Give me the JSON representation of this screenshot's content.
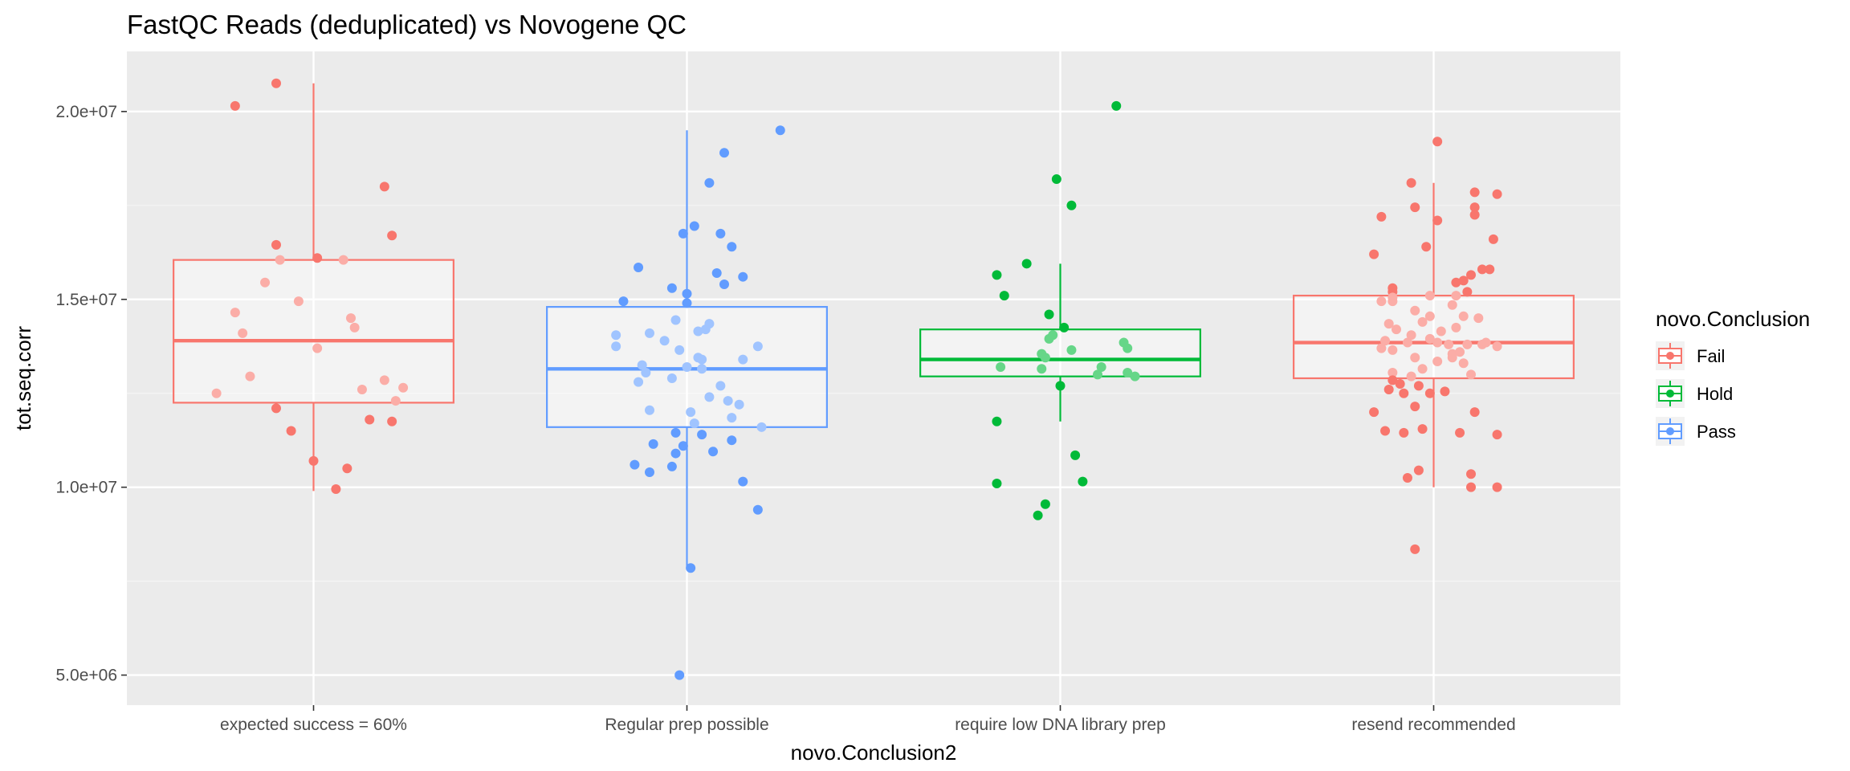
{
  "chart_data": {
    "type": "boxplot",
    "title": "FastQC Reads (deduplicated) vs Novogene QC",
    "xlabel": "novo.Conclusion2",
    "ylabel": "tot.seq.corr",
    "ylim": [
      4200000,
      21600000
    ],
    "y_ticks": [
      5000000,
      10000000,
      15000000,
      20000000
    ],
    "y_tick_labels": [
      "5.0e+06",
      "1.0e+07",
      "1.5e+07",
      "2.0e+07"
    ],
    "grid": true,
    "legend": {
      "title": "novo.Conclusion",
      "placement": "right",
      "entries": [
        {
          "label": "Fail",
          "color": "#F8766D"
        },
        {
          "label": "Hold",
          "color": "#00BA38"
        },
        {
          "label": "Pass",
          "color": "#619CFF"
        }
      ]
    },
    "categories": [
      "expected success = 60%",
      "Regular prep possible",
      "require low DNA library prep",
      "resend recommended"
    ],
    "groups": [
      {
        "category": "expected success = 60%",
        "conclusion": "Fail",
        "color": "#F8766D",
        "box": {
          "q1": 12250000,
          "median": 13900000,
          "q3": 16050000,
          "whisker_low": 9900000,
          "whisker_high": 20750000
        },
        "points": [
          [
            -0.1,
            20750000
          ],
          [
            -0.21,
            20150000
          ],
          [
            0.19,
            18000000
          ],
          [
            0.21,
            16700000
          ],
          [
            -0.1,
            16450000
          ],
          [
            -0.09,
            16050000
          ],
          [
            0.01,
            16100000
          ],
          [
            0.08,
            16050000
          ],
          [
            -0.13,
            15450000
          ],
          [
            -0.04,
            14950000
          ],
          [
            -0.21,
            14650000
          ],
          [
            0.1,
            14500000
          ],
          [
            -0.19,
            14100000
          ],
          [
            0.11,
            14250000
          ],
          [
            0.01,
            13700000
          ],
          [
            -0.17,
            12950000
          ],
          [
            0.19,
            12850000
          ],
          [
            0.24,
            12650000
          ],
          [
            -0.26,
            12500000
          ],
          [
            0.13,
            12600000
          ],
          [
            0.22,
            12300000
          ],
          [
            -0.1,
            12100000
          ],
          [
            0.15,
            11800000
          ],
          [
            0.21,
            11750000
          ],
          [
            -0.06,
            11500000
          ],
          [
            0.0,
            10700000
          ],
          [
            0.09,
            10500000
          ],
          [
            0.06,
            9950000
          ]
        ]
      },
      {
        "category": "Regular prep possible",
        "conclusion": "Pass",
        "color": "#619CFF",
        "box": {
          "q1": 11600000,
          "median": 13150000,
          "q3": 14800000,
          "whisker_low": 7850000,
          "whisker_high": 19500000
        },
        "points": [
          [
            0.25,
            19500000
          ],
          [
            0.1,
            18900000
          ],
          [
            0.06,
            18100000
          ],
          [
            0.02,
            16950000
          ],
          [
            -0.01,
            16750000
          ],
          [
            0.09,
            16750000
          ],
          [
            0.12,
            16400000
          ],
          [
            -0.13,
            15850000
          ],
          [
            0.08,
            15700000
          ],
          [
            0.15,
            15600000
          ],
          [
            0.1,
            15400000
          ],
          [
            -0.04,
            15300000
          ],
          [
            0.0,
            15150000
          ],
          [
            -0.17,
            14950000
          ],
          [
            0.0,
            14900000
          ],
          [
            -0.03,
            14450000
          ],
          [
            0.06,
            14350000
          ],
          [
            0.05,
            14200000
          ],
          [
            0.03,
            14150000
          ],
          [
            -0.1,
            14100000
          ],
          [
            -0.19,
            14050000
          ],
          [
            -0.06,
            13900000
          ],
          [
            -0.19,
            13750000
          ],
          [
            0.19,
            13750000
          ],
          [
            -0.02,
            13650000
          ],
          [
            0.03,
            13450000
          ],
          [
            0.04,
            13400000
          ],
          [
            0.15,
            13400000
          ],
          [
            -0.12,
            13250000
          ],
          [
            0.0,
            13200000
          ],
          [
            0.04,
            13150000
          ],
          [
            -0.11,
            13050000
          ],
          [
            -0.04,
            12900000
          ],
          [
            -0.13,
            12800000
          ],
          [
            0.09,
            12700000
          ],
          [
            0.06,
            12400000
          ],
          [
            0.11,
            12300000
          ],
          [
            0.14,
            12200000
          ],
          [
            -0.1,
            12050000
          ],
          [
            0.01,
            12000000
          ],
          [
            0.12,
            11850000
          ],
          [
            0.02,
            11700000
          ],
          [
            0.2,
            11600000
          ],
          [
            -0.03,
            11450000
          ],
          [
            0.04,
            11400000
          ],
          [
            0.12,
            11250000
          ],
          [
            -0.09,
            11150000
          ],
          [
            -0.01,
            11100000
          ],
          [
            -0.03,
            10900000
          ],
          [
            0.07,
            10950000
          ],
          [
            -0.14,
            10600000
          ],
          [
            -0.04,
            10550000
          ],
          [
            -0.1,
            10400000
          ],
          [
            0.15,
            10150000
          ],
          [
            0.19,
            9400000
          ],
          [
            0.01,
            7850000
          ],
          [
            -0.02,
            5000000
          ]
        ]
      },
      {
        "category": "require low DNA library prep",
        "conclusion": "Hold",
        "color": "#00BA38",
        "box": {
          "q1": 12950000,
          "median": 13400000,
          "q3": 14200000,
          "whisker_low": 11750000,
          "whisker_high": 15950000
        },
        "points": [
          [
            0.15,
            20150000
          ],
          [
            -0.01,
            18200000
          ],
          [
            0.03,
            17500000
          ],
          [
            -0.09,
            15950000
          ],
          [
            -0.17,
            15650000
          ],
          [
            -0.15,
            15100000
          ],
          [
            -0.03,
            14600000
          ],
          [
            0.01,
            14250000
          ],
          [
            -0.02,
            14050000
          ],
          [
            -0.03,
            13950000
          ],
          [
            0.17,
            13850000
          ],
          [
            0.18,
            13700000
          ],
          [
            0.03,
            13650000
          ],
          [
            -0.05,
            13550000
          ],
          [
            -0.04,
            13450000
          ],
          [
            -0.16,
            13200000
          ],
          [
            -0.05,
            13150000
          ],
          [
            0.11,
            13200000
          ],
          [
            0.18,
            13050000
          ],
          [
            0.1,
            13000000
          ],
          [
            0.2,
            12950000
          ],
          [
            0.0,
            12700000
          ],
          [
            -0.17,
            11750000
          ],
          [
            0.04,
            10850000
          ],
          [
            -0.17,
            10100000
          ],
          [
            0.06,
            10150000
          ],
          [
            -0.04,
            9550000
          ],
          [
            -0.06,
            9250000
          ]
        ]
      },
      {
        "category": "resend recommended",
        "conclusion": "Fail",
        "color": "#F8766D",
        "box": {
          "q1": 12900000,
          "median": 13850000,
          "q3": 15100000,
          "whisker_low": 10000000,
          "whisker_high": 18100000
        },
        "points": [
          [
            0.01,
            19200000
          ],
          [
            -0.06,
            18100000
          ],
          [
            0.11,
            17850000
          ],
          [
            0.17,
            17800000
          ],
          [
            -0.05,
            17450000
          ],
          [
            0.11,
            17450000
          ],
          [
            -0.14,
            17200000
          ],
          [
            0.11,
            17250000
          ],
          [
            0.01,
            17100000
          ],
          [
            0.16,
            16600000
          ],
          [
            -0.02,
            16400000
          ],
          [
            -0.16,
            16200000
          ],
          [
            0.15,
            15800000
          ],
          [
            0.13,
            15800000
          ],
          [
            0.1,
            15650000
          ],
          [
            0.08,
            15500000
          ],
          [
            0.06,
            15450000
          ],
          [
            -0.11,
            15300000
          ],
          [
            -0.11,
            15200000
          ],
          [
            0.09,
            15200000
          ],
          [
            -0.01,
            15100000
          ],
          [
            0.06,
            15100000
          ],
          [
            -0.11,
            15050000
          ],
          [
            -0.14,
            14950000
          ],
          [
            -0.11,
            14950000
          ],
          [
            0.05,
            14850000
          ],
          [
            -0.05,
            14700000
          ],
          [
            -0.01,
            14550000
          ],
          [
            0.08,
            14550000
          ],
          [
            0.12,
            14500000
          ],
          [
            -0.03,
            14400000
          ],
          [
            -0.12,
            14350000
          ],
          [
            0.06,
            14250000
          ],
          [
            -0.1,
            14200000
          ],
          [
            0.02,
            14150000
          ],
          [
            -0.06,
            14050000
          ],
          [
            -0.01,
            13950000
          ],
          [
            -0.13,
            13900000
          ],
          [
            -0.07,
            13850000
          ],
          [
            0.01,
            13850000
          ],
          [
            0.04,
            13800000
          ],
          [
            0.09,
            13800000
          ],
          [
            0.13,
            13800000
          ],
          [
            0.14,
            13850000
          ],
          [
            -0.14,
            13700000
          ],
          [
            -0.11,
            13650000
          ],
          [
            0.07,
            13600000
          ],
          [
            0.05,
            13550000
          ],
          [
            0.17,
            13750000
          ],
          [
            -0.05,
            13450000
          ],
          [
            0.05,
            13450000
          ],
          [
            0.01,
            13350000
          ],
          [
            0.08,
            13300000
          ],
          [
            -0.03,
            13150000
          ],
          [
            -0.11,
            13050000
          ],
          [
            -0.06,
            12950000
          ],
          [
            0.1,
            13000000
          ],
          [
            -0.11,
            12850000
          ],
          [
            -0.09,
            12750000
          ],
          [
            -0.04,
            12700000
          ],
          [
            -0.12,
            12600000
          ],
          [
            0.03,
            12550000
          ],
          [
            -0.01,
            12500000
          ],
          [
            -0.08,
            12500000
          ],
          [
            -0.05,
            12150000
          ],
          [
            -0.16,
            12000000
          ],
          [
            0.11,
            12000000
          ],
          [
            -0.08,
            11450000
          ],
          [
            0.07,
            11450000
          ],
          [
            -0.13,
            11500000
          ],
          [
            -0.03,
            11550000
          ],
          [
            0.17,
            11400000
          ],
          [
            -0.04,
            10450000
          ],
          [
            0.1,
            10350000
          ],
          [
            -0.07,
            10250000
          ],
          [
            0.1,
            10000000
          ],
          [
            0.17,
            10000000
          ],
          [
            -0.05,
            8350000
          ]
        ]
      }
    ]
  }
}
